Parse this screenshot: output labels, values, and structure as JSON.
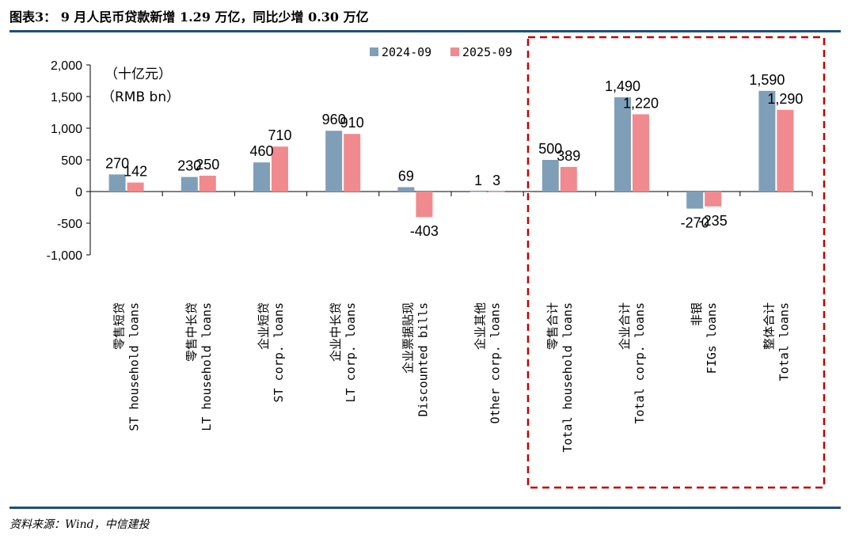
{
  "figure": {
    "title": "图表3： 9 月人民币贷款新增 1.29 万亿，同比少增 0.30 万亿",
    "source": "资料来源：Wind，中信建投"
  },
  "chart_data": {
    "type": "bar",
    "unit_cn": "（十亿元）",
    "unit_en": "（RMB bn）",
    "ylim": [
      -1000,
      2000
    ],
    "yticks": [
      2000,
      1500,
      1000,
      500,
      0,
      -500,
      -1000
    ],
    "ytick_labels": [
      "2,000",
      "1,500",
      "1,000",
      "500",
      "0",
      "-500",
      "-1,000"
    ],
    "legend_position": "top-right",
    "grid": false,
    "categories": [
      {
        "cn": "零售短贷",
        "en": "ST household loans"
      },
      {
        "cn": "零售中长贷",
        "en": "LT household loans"
      },
      {
        "cn": "企业短贷",
        "en": "ST corp. loans"
      },
      {
        "cn": "企业中长贷",
        "en": "LT corp. loans"
      },
      {
        "cn": "企业票据贴现",
        "en": "Discounted bills"
      },
      {
        "cn": "企业其他",
        "en": "Other corp. loans"
      },
      {
        "cn": "零售合计",
        "en": "Total household loans"
      },
      {
        "cn": "企业合计",
        "en": "Total corp. loans"
      },
      {
        "cn": "非银",
        "en": "FIGs loans"
      },
      {
        "cn": "整体合计",
        "en": "Total loans"
      }
    ],
    "series": [
      {
        "name": "2024-09",
        "color": "#7f9fb8",
        "values": [
          270,
          230,
          460,
          960,
          69,
          1,
          500,
          1490,
          -270,
          1590
        ],
        "labels": [
          "270",
          "230",
          "460",
          "960",
          "69",
          "1",
          "500",
          "1,490",
          "-270",
          "1,590"
        ]
      },
      {
        "name": "2025-09",
        "color": "#f08a8e",
        "values": [
          142,
          250,
          710,
          910,
          -403,
          3,
          389,
          1220,
          -235,
          1290
        ],
        "labels": [
          "142",
          "250",
          "710",
          "910",
          "-403",
          "3",
          "389",
          "1,220",
          "-235",
          "1,290"
        ]
      }
    ],
    "highlight_box_color": "#c00000"
  }
}
